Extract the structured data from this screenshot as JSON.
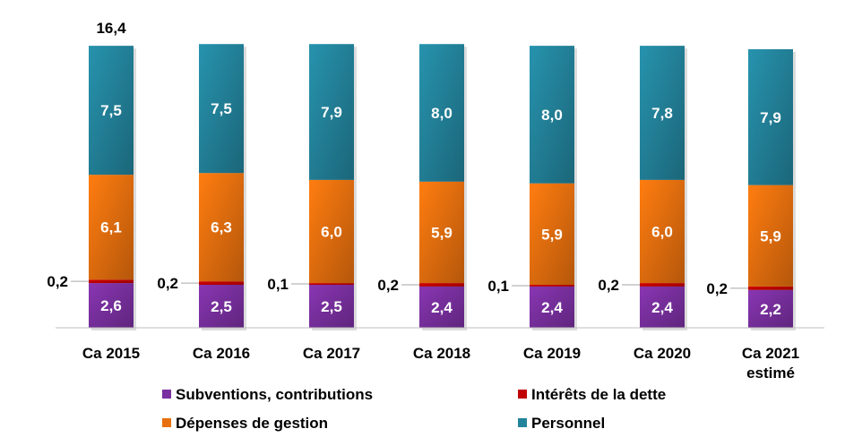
{
  "chart_data": {
    "type": "bar",
    "stacked": true,
    "categories": [
      "Ca 2015",
      "Ca 2016",
      "Ca 2017",
      "Ca 2018",
      "Ca 2019",
      "Ca 2020",
      "Ca 2021 estimé"
    ],
    "series": [
      {
        "name": "Subventions, contributions",
        "color": "#7a30a0",
        "values": [
          2.6,
          2.5,
          2.5,
          2.4,
          2.4,
          2.4,
          2.2
        ],
        "labels": [
          "2,6",
          "2,5",
          "2,5",
          "2,4",
          "2,4",
          "2,4",
          "2,2"
        ]
      },
      {
        "name": "Intérêts de la dette",
        "color": "#c00000",
        "values": [
          0.2,
          0.2,
          0.1,
          0.2,
          0.1,
          0.2,
          0.2
        ],
        "labels": [
          "0,2",
          "0,2",
          "0,1",
          "0,2",
          "0,1",
          "0,2",
          "0,2"
        ]
      },
      {
        "name": "Dépenses de gestion",
        "color": "#e8700e",
        "values": [
          6.1,
          6.3,
          6.0,
          5.9,
          5.9,
          6.0,
          5.9
        ],
        "labels": [
          "6,1",
          "6,3",
          "6,0",
          "5,9",
          "5,9",
          "6,0",
          "5,9"
        ]
      },
      {
        "name": "Personnel",
        "color": "#23839b",
        "values": [
          7.5,
          7.5,
          7.9,
          8.0,
          8.0,
          7.8,
          7.9
        ],
        "labels": [
          "7,5",
          "7,5",
          "7,9",
          "8,0",
          "8,0",
          "7,8",
          "7,9"
        ]
      }
    ],
    "total_annotation": {
      "category": "Ca 2015",
      "label": "16,4"
    },
    "legend": {
      "placement": "bottom",
      "items": [
        "Subventions, contributions",
        "Intérêts de la dette",
        "Dépenses de gestion",
        "Personnel"
      ]
    },
    "title": "",
    "xlabel": "",
    "ylabel": "",
    "grid": false
  }
}
